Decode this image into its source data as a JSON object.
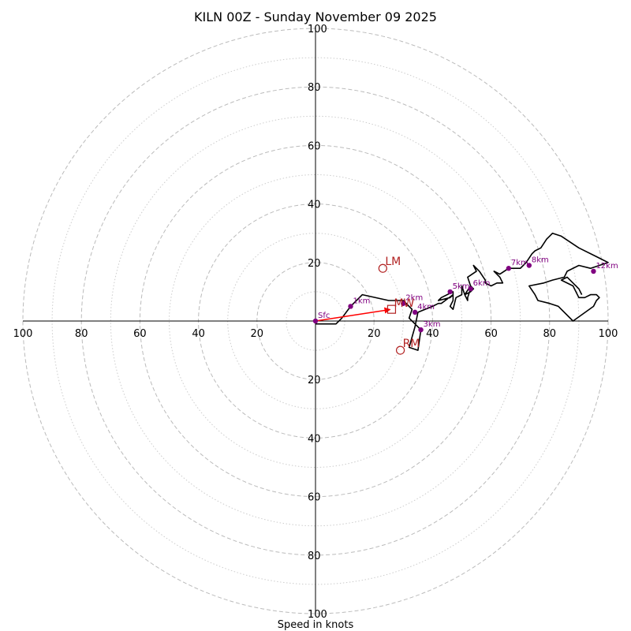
{
  "chart_data": {
    "type": "hodograph",
    "title": "KILN 00Z - Sunday November 09 2025",
    "xlabel": "Speed in knots",
    "range": [
      -100,
      100
    ],
    "rings_major": [
      20,
      40,
      60,
      80,
      100
    ],
    "rings_minor": [
      10,
      30,
      50,
      70,
      90
    ],
    "x_ticks": [
      {
        "v": -100,
        "label": "100"
      },
      {
        "v": -80,
        "label": "80"
      },
      {
        "v": -60,
        "label": "60"
      },
      {
        "v": -40,
        "label": "40"
      },
      {
        "v": -20,
        "label": "20"
      },
      {
        "v": 20,
        "label": "20"
      },
      {
        "v": 40,
        "label": "40"
      },
      {
        "v": 60,
        "label": "60"
      },
      {
        "v": 80,
        "label": "80"
      },
      {
        "v": 100,
        "label": "100"
      }
    ],
    "y_ticks": [
      {
        "v": 100,
        "label": "100"
      },
      {
        "v": 80,
        "label": "80"
      },
      {
        "v": 60,
        "label": "60"
      },
      {
        "v": 40,
        "label": "40"
      },
      {
        "v": 20,
        "label": "20"
      },
      {
        "v": -20,
        "label": "20"
      },
      {
        "v": -40,
        "label": "40"
      },
      {
        "v": -60,
        "label": "60"
      },
      {
        "v": -80,
        "label": "80"
      },
      {
        "v": -100,
        "label": "100"
      }
    ],
    "trace": [
      [
        0,
        -1
      ],
      [
        7,
        -1
      ],
      [
        9,
        1
      ],
      [
        12,
        5
      ],
      [
        16,
        9
      ],
      [
        25,
        7
      ],
      [
        30,
        7
      ],
      [
        33,
        4
      ],
      [
        32,
        1
      ],
      [
        36,
        -3
      ],
      [
        35,
        -10
      ],
      [
        32,
        -9
      ],
      [
        34,
        -2
      ],
      [
        35,
        3
      ],
      [
        40,
        5
      ],
      [
        42,
        6
      ],
      [
        43,
        6
      ],
      [
        47,
        9
      ],
      [
        46,
        8
      ],
      [
        42,
        7
      ],
      [
        43,
        8
      ],
      [
        47,
        10
      ],
      [
        47,
        8
      ],
      [
        47,
        7
      ],
      [
        46,
        5
      ],
      [
        47,
        4
      ],
      [
        48,
        8
      ],
      [
        50,
        9
      ],
      [
        50,
        12
      ],
      [
        51,
        9
      ],
      [
        52,
        7
      ],
      [
        52,
        8
      ],
      [
        53,
        11
      ],
      [
        53,
        12
      ],
      [
        54,
        11
      ],
      [
        53,
        10
      ],
      [
        51,
        9
      ],
      [
        53,
        12
      ],
      [
        52,
        15
      ],
      [
        55,
        17
      ],
      [
        54,
        19
      ],
      [
        56,
        17
      ],
      [
        58,
        14
      ],
      [
        58,
        13
      ],
      [
        60,
        12
      ],
      [
        62,
        13
      ],
      [
        64,
        13
      ],
      [
        63,
        15
      ],
      [
        61,
        17
      ],
      [
        63,
        16
      ],
      [
        66,
        18
      ],
      [
        70,
        18
      ],
      [
        72,
        20
      ],
      [
        74,
        23
      ],
      [
        75,
        24
      ],
      [
        77,
        25
      ],
      [
        79,
        28
      ],
      [
        80,
        29
      ],
      [
        81,
        30
      ],
      [
        84,
        29
      ],
      [
        90,
        25
      ],
      [
        96,
        22
      ],
      [
        100,
        20
      ],
      [
        97,
        19
      ],
      [
        94,
        18
      ],
      [
        90,
        19
      ],
      [
        86,
        17
      ],
      [
        85,
        15
      ],
      [
        81,
        14
      ],
      [
        78,
        13
      ],
      [
        73,
        12
      ],
      [
        75,
        9
      ],
      [
        76,
        7
      ],
      [
        80,
        6
      ],
      [
        83,
        5
      ],
      [
        88,
        0
      ],
      [
        95,
        5
      ],
      [
        96,
        7
      ],
      [
        97,
        8
      ],
      [
        96,
        9
      ],
      [
        94,
        9
      ],
      [
        92,
        8
      ],
      [
        91,
        8
      ],
      [
        90,
        8
      ],
      [
        88,
        12
      ],
      [
        84,
        14
      ],
      [
        86,
        15
      ],
      [
        90,
        11
      ],
      [
        91,
        9
      ]
    ],
    "height_markers": [
      {
        "label": "Sfc",
        "u": 0,
        "v": 0
      },
      {
        "label": "1km",
        "u": 12,
        "v": 5
      },
      {
        "label": "2km",
        "u": 30,
        "v": 6
      },
      {
        "label": "3km",
        "u": 36,
        "v": -3
      },
      {
        "label": "4km",
        "u": 34,
        "v": 3
      },
      {
        "label": "5km",
        "u": 46,
        "v": 10
      },
      {
        "label": "6km",
        "u": 53,
        "v": 11
      },
      {
        "label": "7km",
        "u": 66,
        "v": 18
      },
      {
        "label": "8km",
        "u": 73,
        "v": 19
      },
      {
        "label": "12km",
        "u": 95,
        "v": 17
      }
    ],
    "storm_motion": {
      "LM": {
        "u": 23,
        "v": 18
      },
      "RM": {
        "u": 29,
        "v": -10
      },
      "MW": {
        "u": 26,
        "v": 4
      }
    },
    "shear_vector": {
      "from": [
        0,
        0
      ],
      "to": [
        26,
        4
      ]
    },
    "colors": {
      "trace": "#000000",
      "marker": "#800080",
      "storm": "#b22222",
      "vector": "#ff0000",
      "ring": "#bbbbbb"
    }
  }
}
